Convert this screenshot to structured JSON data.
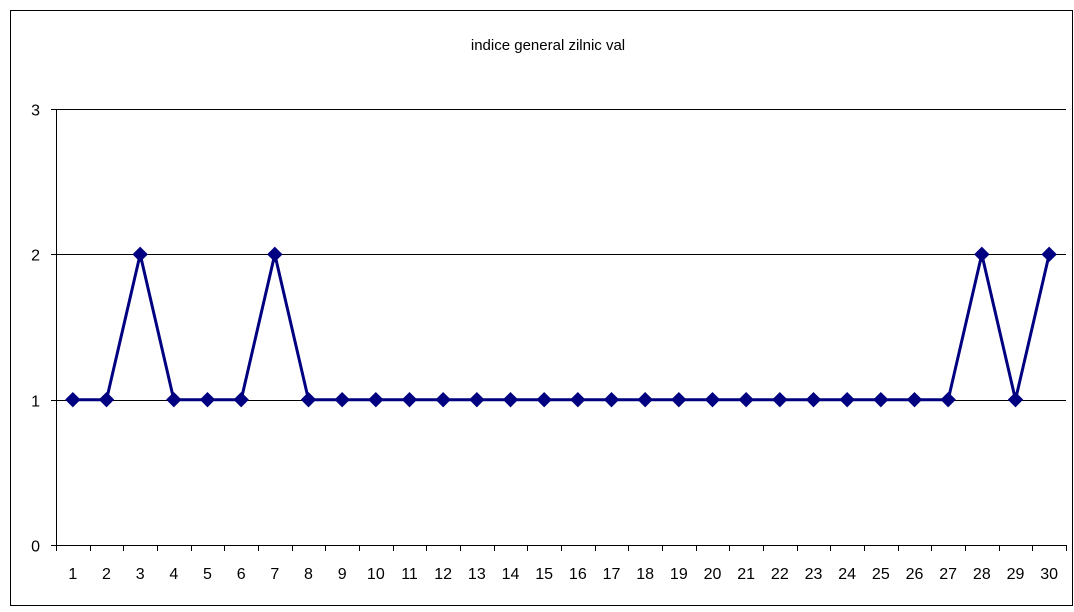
{
  "chart_data": {
    "type": "line",
    "title": "indice general zilnic val",
    "xlabel": "",
    "ylabel": "",
    "categories": [
      "1",
      "2",
      "3",
      "4",
      "5",
      "6",
      "7",
      "8",
      "9",
      "10",
      "11",
      "12",
      "13",
      "14",
      "15",
      "16",
      "17",
      "18",
      "19",
      "20",
      "21",
      "22",
      "23",
      "24",
      "25",
      "26",
      "27",
      "28",
      "29",
      "30"
    ],
    "series": [
      {
        "values": [
          1,
          1,
          2,
          1,
          1,
          1,
          2,
          1,
          1,
          1,
          1,
          1,
          1,
          1,
          1,
          1,
          1,
          1,
          1,
          1,
          1,
          1,
          1,
          1,
          1,
          1,
          1,
          2,
          1,
          2
        ],
        "color": "#000080",
        "marker": "diamond"
      }
    ],
    "ylim": [
      0,
      3
    ],
    "yticks": [
      "0",
      "1",
      "2",
      "3"
    ],
    "grid": "horizontal",
    "legend": "none"
  }
}
